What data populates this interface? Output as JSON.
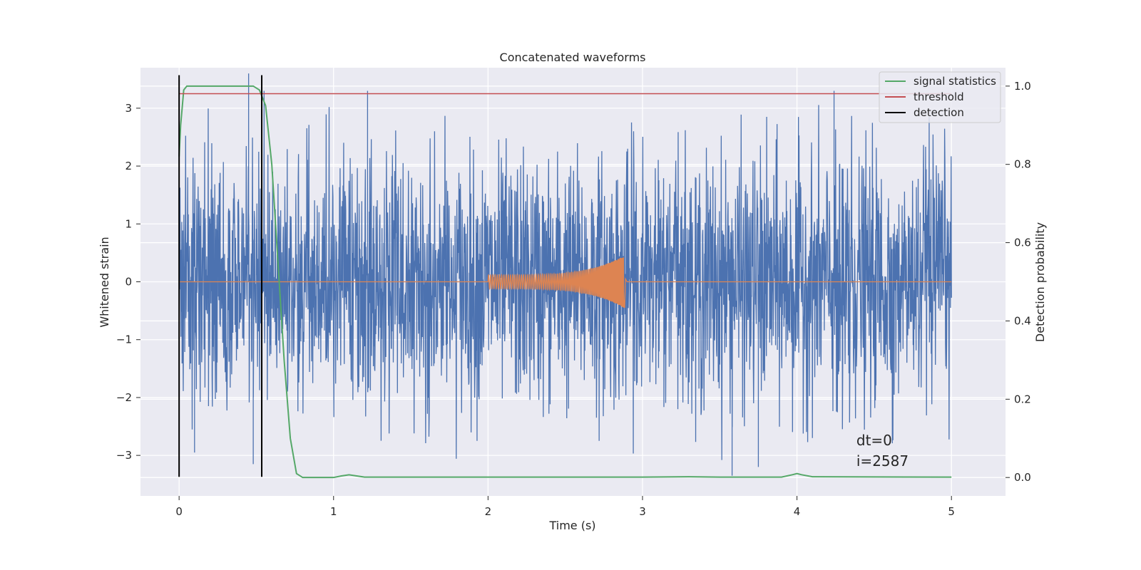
{
  "chart_data": {
    "type": "line",
    "title": "Concatenated waveforms",
    "xlabel": "Time (s)",
    "ylabel_left": "Whitened strain",
    "ylabel_right": "Detection probability",
    "xlim": [
      -0.25,
      5.35
    ],
    "ylim_left": [
      -3.7,
      3.7
    ],
    "ylim_right": [
      -0.047,
      1.047
    ],
    "x_ticks": [
      0,
      1,
      2,
      3,
      4,
      5
    ],
    "x_tick_labels": [
      "0",
      "1",
      "2",
      "3",
      "4",
      "5"
    ],
    "y_left_ticks": [
      -3,
      -2,
      -1,
      0,
      1,
      2,
      3
    ],
    "y_left_tick_labels": [
      "−3",
      "−2",
      "−1",
      "0",
      "1",
      "2",
      "3"
    ],
    "y_right_ticks": [
      0.0,
      0.2,
      0.4,
      0.6,
      0.8,
      1.0
    ],
    "y_right_tick_labels": [
      "0.0",
      "0.2",
      "0.4",
      "0.6",
      "0.8",
      "1.0"
    ],
    "grid": true,
    "legend_position": "top-right",
    "colors": {
      "noise": "#4c72b0",
      "signal": "#dd8452",
      "signal_statistics": "#55a868",
      "threshold": "#c44e52",
      "detection": "#000000",
      "plot_bg": "#eaeaf2",
      "grid": "#ffffff"
    },
    "legend": [
      {
        "label": "signal statistics",
        "color": "#55a868"
      },
      {
        "label": "threshold",
        "color": "#c44e52"
      },
      {
        "label": "detection",
        "color": "#000000"
      }
    ],
    "series": {
      "noise_strain": {
        "axis": "left",
        "t_range": [
          0,
          5
        ],
        "core_band": [
          -0.6,
          0.8
        ],
        "spikes": [
          {
            "t": 0.45,
            "value": 3.6
          },
          {
            "t": 0.55,
            "value": 3.3
          },
          {
            "t": 1.22,
            "value": 3.3
          },
          {
            "t": 4.24,
            "value": 3.3
          },
          {
            "t": 3.58,
            "value": -3.35
          },
          {
            "t": 3.75,
            "value": -3.2
          },
          {
            "t": 0.1,
            "value": -2.95
          },
          {
            "t": 0.48,
            "value": -3.15
          }
        ]
      },
      "signal_waveform": {
        "axis": "left",
        "t_start": 2.0,
        "t_merger": 2.88,
        "amp_start": 0.12,
        "amp_peak": 0.45
      },
      "signal_statistics": {
        "axis": "right",
        "t": [
          0,
          0.01,
          0.03,
          0.05,
          0.1,
          0.2,
          0.4,
          0.48,
          0.52,
          0.56,
          0.6,
          0.64,
          0.68,
          0.72,
          0.76,
          0.8,
          1.0,
          1.05,
          1.1,
          1.15,
          1.2,
          2.0,
          3.0,
          3.3,
          3.5,
          3.9,
          3.97,
          4.0,
          4.03,
          4.1,
          5.0
        ],
        "values": [
          0.82,
          0.9,
          0.99,
          1.0,
          1.0,
          1.0,
          1.0,
          1.0,
          0.99,
          0.95,
          0.8,
          0.55,
          0.3,
          0.1,
          0.01,
          0.0,
          0.0,
          0.004,
          0.007,
          0.004,
          0.001,
          0.001,
          0.001,
          0.002,
          0.001,
          0.001,
          0.007,
          0.01,
          0.007,
          0.002,
          0.001
        ]
      },
      "threshold": {
        "axis": "left",
        "t_range": [
          0,
          5
        ],
        "value": 3.25
      },
      "detection": {
        "axis": "left",
        "t": [
          0,
          0.535
        ],
        "y_range": [
          -3.37,
          3.57
        ]
      }
    },
    "annotation": {
      "line1": "dt=0",
      "line2": "i=2587",
      "t": 4.5,
      "value": -2.9
    }
  }
}
